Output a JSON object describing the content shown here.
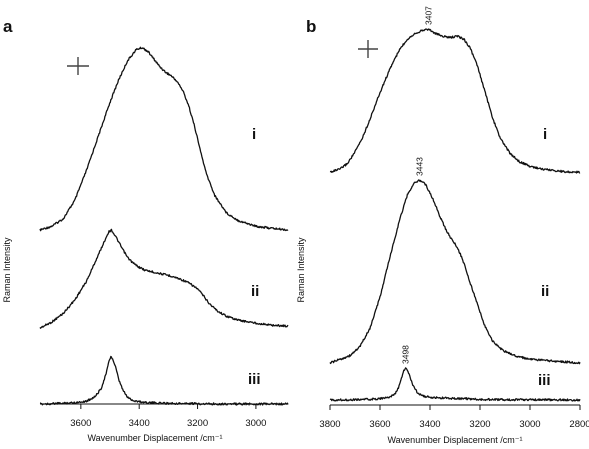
{
  "chart_data": [
    {
      "type": "line",
      "panel": "a",
      "xlabel": "Wavenumber Displacement /cm⁻¹",
      "ylabel": "Raman Intensity",
      "xlim": [
        3740,
        2890
      ],
      "x_reversed": true,
      "xticks": [
        3600,
        3400,
        3200,
        3000
      ],
      "xtick_labels": [
        "3600",
        "3400",
        "3200",
        "3000"
      ],
      "polarization_symbol": "+",
      "series": [
        {
          "label": "i",
          "baseline": 0.0,
          "points": [
            [
              3740,
              0.0
            ],
            [
              3700,
              0.02
            ],
            [
              3660,
              0.06
            ],
            [
              3620,
              0.16
            ],
            [
              3580,
              0.32
            ],
            [
              3540,
              0.5
            ],
            [
              3500,
              0.68
            ],
            [
              3470,
              0.8
            ],
            [
              3440,
              0.9
            ],
            [
              3410,
              0.96
            ],
            [
              3390,
              0.97
            ],
            [
              3370,
              0.95
            ],
            [
              3350,
              0.91
            ],
            [
              3330,
              0.87
            ],
            [
              3310,
              0.84
            ],
            [
              3290,
              0.82
            ],
            [
              3270,
              0.79
            ],
            [
              3250,
              0.74
            ],
            [
              3230,
              0.66
            ],
            [
              3210,
              0.55
            ],
            [
              3190,
              0.42
            ],
            [
              3170,
              0.3
            ],
            [
              3140,
              0.18
            ],
            [
              3100,
              0.09
            ],
            [
              3060,
              0.05
            ],
            [
              3000,
              0.02
            ],
            [
              2950,
              0.01
            ],
            [
              2890,
              0.0
            ]
          ]
        },
        {
          "label": "ii",
          "baseline": 0.0,
          "points": [
            [
              3740,
              0.0
            ],
            [
              3700,
              0.06
            ],
            [
              3660,
              0.15
            ],
            [
              3620,
              0.29
            ],
            [
              3580,
              0.48
            ],
            [
              3550,
              0.68
            ],
            [
              3520,
              0.88
            ],
            [
              3505,
              0.98
            ],
            [
              3495,
              1.0
            ],
            [
              3480,
              0.93
            ],
            [
              3460,
              0.82
            ],
            [
              3440,
              0.72
            ],
            [
              3420,
              0.66
            ],
            [
              3400,
              0.62
            ],
            [
              3380,
              0.59
            ],
            [
              3350,
              0.57
            ],
            [
              3320,
              0.55
            ],
            [
              3290,
              0.53
            ],
            [
              3260,
              0.5
            ],
            [
              3230,
              0.46
            ],
            [
              3200,
              0.4
            ],
            [
              3180,
              0.33
            ],
            [
              3160,
              0.25
            ],
            [
              3130,
              0.17
            ],
            [
              3100,
              0.12
            ],
            [
              3060,
              0.08
            ],
            [
              3000,
              0.05
            ],
            [
              2950,
              0.03
            ],
            [
              2890,
              0.02
            ]
          ]
        },
        {
          "label": "iii",
          "baseline": 0.0,
          "points": [
            [
              3740,
              0.0
            ],
            [
              3680,
              0.01
            ],
            [
              3620,
              0.03
            ],
            [
              3580,
              0.06
            ],
            [
              3550,
              0.16
            ],
            [
              3530,
              0.33
            ],
            [
              3515,
              0.6
            ],
            [
              3505,
              0.85
            ],
            [
              3497,
              1.0
            ],
            [
              3490,
              0.92
            ],
            [
              3480,
              0.75
            ],
            [
              3470,
              0.5
            ],
            [
              3455,
              0.28
            ],
            [
              3440,
              0.14
            ],
            [
              3420,
              0.07
            ],
            [
              3390,
              0.04
            ],
            [
              3340,
              0.02
            ],
            [
              3260,
              0.01
            ],
            [
              3100,
              0.0
            ],
            [
              2890,
              0.0
            ]
          ]
        }
      ]
    },
    {
      "type": "line",
      "panel": "b",
      "xlabel": "Wavenumber Displacement /cm⁻¹",
      "ylabel": "Raman Intensity",
      "xlim": [
        3800,
        2800
      ],
      "x_reversed": true,
      "xticks": [
        3800,
        3600,
        3400,
        3200,
        3000,
        2800
      ],
      "xtick_labels": [
        "3800",
        "3600",
        "3400",
        "3200",
        "3000",
        "2800"
      ],
      "polarization_symbol": "+",
      "series": [
        {
          "label": "i",
          "peak_label": "3407",
          "peak_x": 3407,
          "points": [
            [
              3800,
              0.0
            ],
            [
              3760,
              0.02
            ],
            [
              3730,
              0.06
            ],
            [
              3700,
              0.14
            ],
            [
              3670,
              0.24
            ],
            [
              3640,
              0.37
            ],
            [
              3610,
              0.51
            ],
            [
              3580,
              0.64
            ],
            [
              3550,
              0.76
            ],
            [
              3520,
              0.86
            ],
            [
              3490,
              0.93
            ],
            [
              3460,
              0.97
            ],
            [
              3430,
              0.99
            ],
            [
              3407,
              1.0
            ],
            [
              3380,
              0.97
            ],
            [
              3350,
              0.95
            ],
            [
              3320,
              0.94
            ],
            [
              3290,
              0.95
            ],
            [
              3265,
              0.93
            ],
            [
              3240,
              0.87
            ],
            [
              3210,
              0.74
            ],
            [
              3180,
              0.56
            ],
            [
              3150,
              0.38
            ],
            [
              3120,
              0.24
            ],
            [
              3080,
              0.13
            ],
            [
              3040,
              0.07
            ],
            [
              3000,
              0.04
            ],
            [
              2950,
              0.02
            ],
            [
              2900,
              0.01
            ],
            [
              2850,
              0.0
            ],
            [
              2800,
              0.0
            ]
          ]
        },
        {
          "label": "ii",
          "peak_label": "3443",
          "peak_x": 3443,
          "points": [
            [
              3800,
              0.0
            ],
            [
              3760,
              0.02
            ],
            [
              3720,
              0.04
            ],
            [
              3680,
              0.09
            ],
            [
              3640,
              0.19
            ],
            [
              3600,
              0.36
            ],
            [
              3560,
              0.58
            ],
            [
              3520,
              0.79
            ],
            [
              3490,
              0.92
            ],
            [
              3465,
              0.98
            ],
            [
              3443,
              1.0
            ],
            [
              3420,
              0.98
            ],
            [
              3400,
              0.93
            ],
            [
              3380,
              0.87
            ],
            [
              3360,
              0.8
            ],
            [
              3340,
              0.74
            ],
            [
              3320,
              0.69
            ],
            [
              3300,
              0.65
            ],
            [
              3280,
              0.6
            ],
            [
              3260,
              0.53
            ],
            [
              3240,
              0.44
            ],
            [
              3210,
              0.32
            ],
            [
              3180,
              0.2
            ],
            [
              3150,
              0.12
            ],
            [
              3110,
              0.07
            ],
            [
              3060,
              0.04
            ],
            [
              3000,
              0.02
            ],
            [
              2900,
              0.01
            ],
            [
              2800,
              0.0
            ]
          ]
        },
        {
          "label": "iii",
          "peak_label": "3498",
          "peak_x": 3498,
          "points": [
            [
              3800,
              0.0
            ],
            [
              3700,
              0.01
            ],
            [
              3620,
              0.03
            ],
            [
              3570,
              0.07
            ],
            [
              3540,
              0.18
            ],
            [
              3525,
              0.4
            ],
            [
              3512,
              0.72
            ],
            [
              3505,
              0.92
            ],
            [
              3498,
              1.0
            ],
            [
              3490,
              0.92
            ],
            [
              3480,
              0.72
            ],
            [
              3468,
              0.45
            ],
            [
              3452,
              0.25
            ],
            [
              3430,
              0.13
            ],
            [
              3400,
              0.08
            ],
            [
              3350,
              0.06
            ],
            [
              3300,
              0.05
            ],
            [
              3250,
              0.04
            ],
            [
              3200,
              0.02
            ],
            [
              3100,
              0.01
            ],
            [
              2800,
              0.0
            ]
          ]
        }
      ]
    }
  ]
}
